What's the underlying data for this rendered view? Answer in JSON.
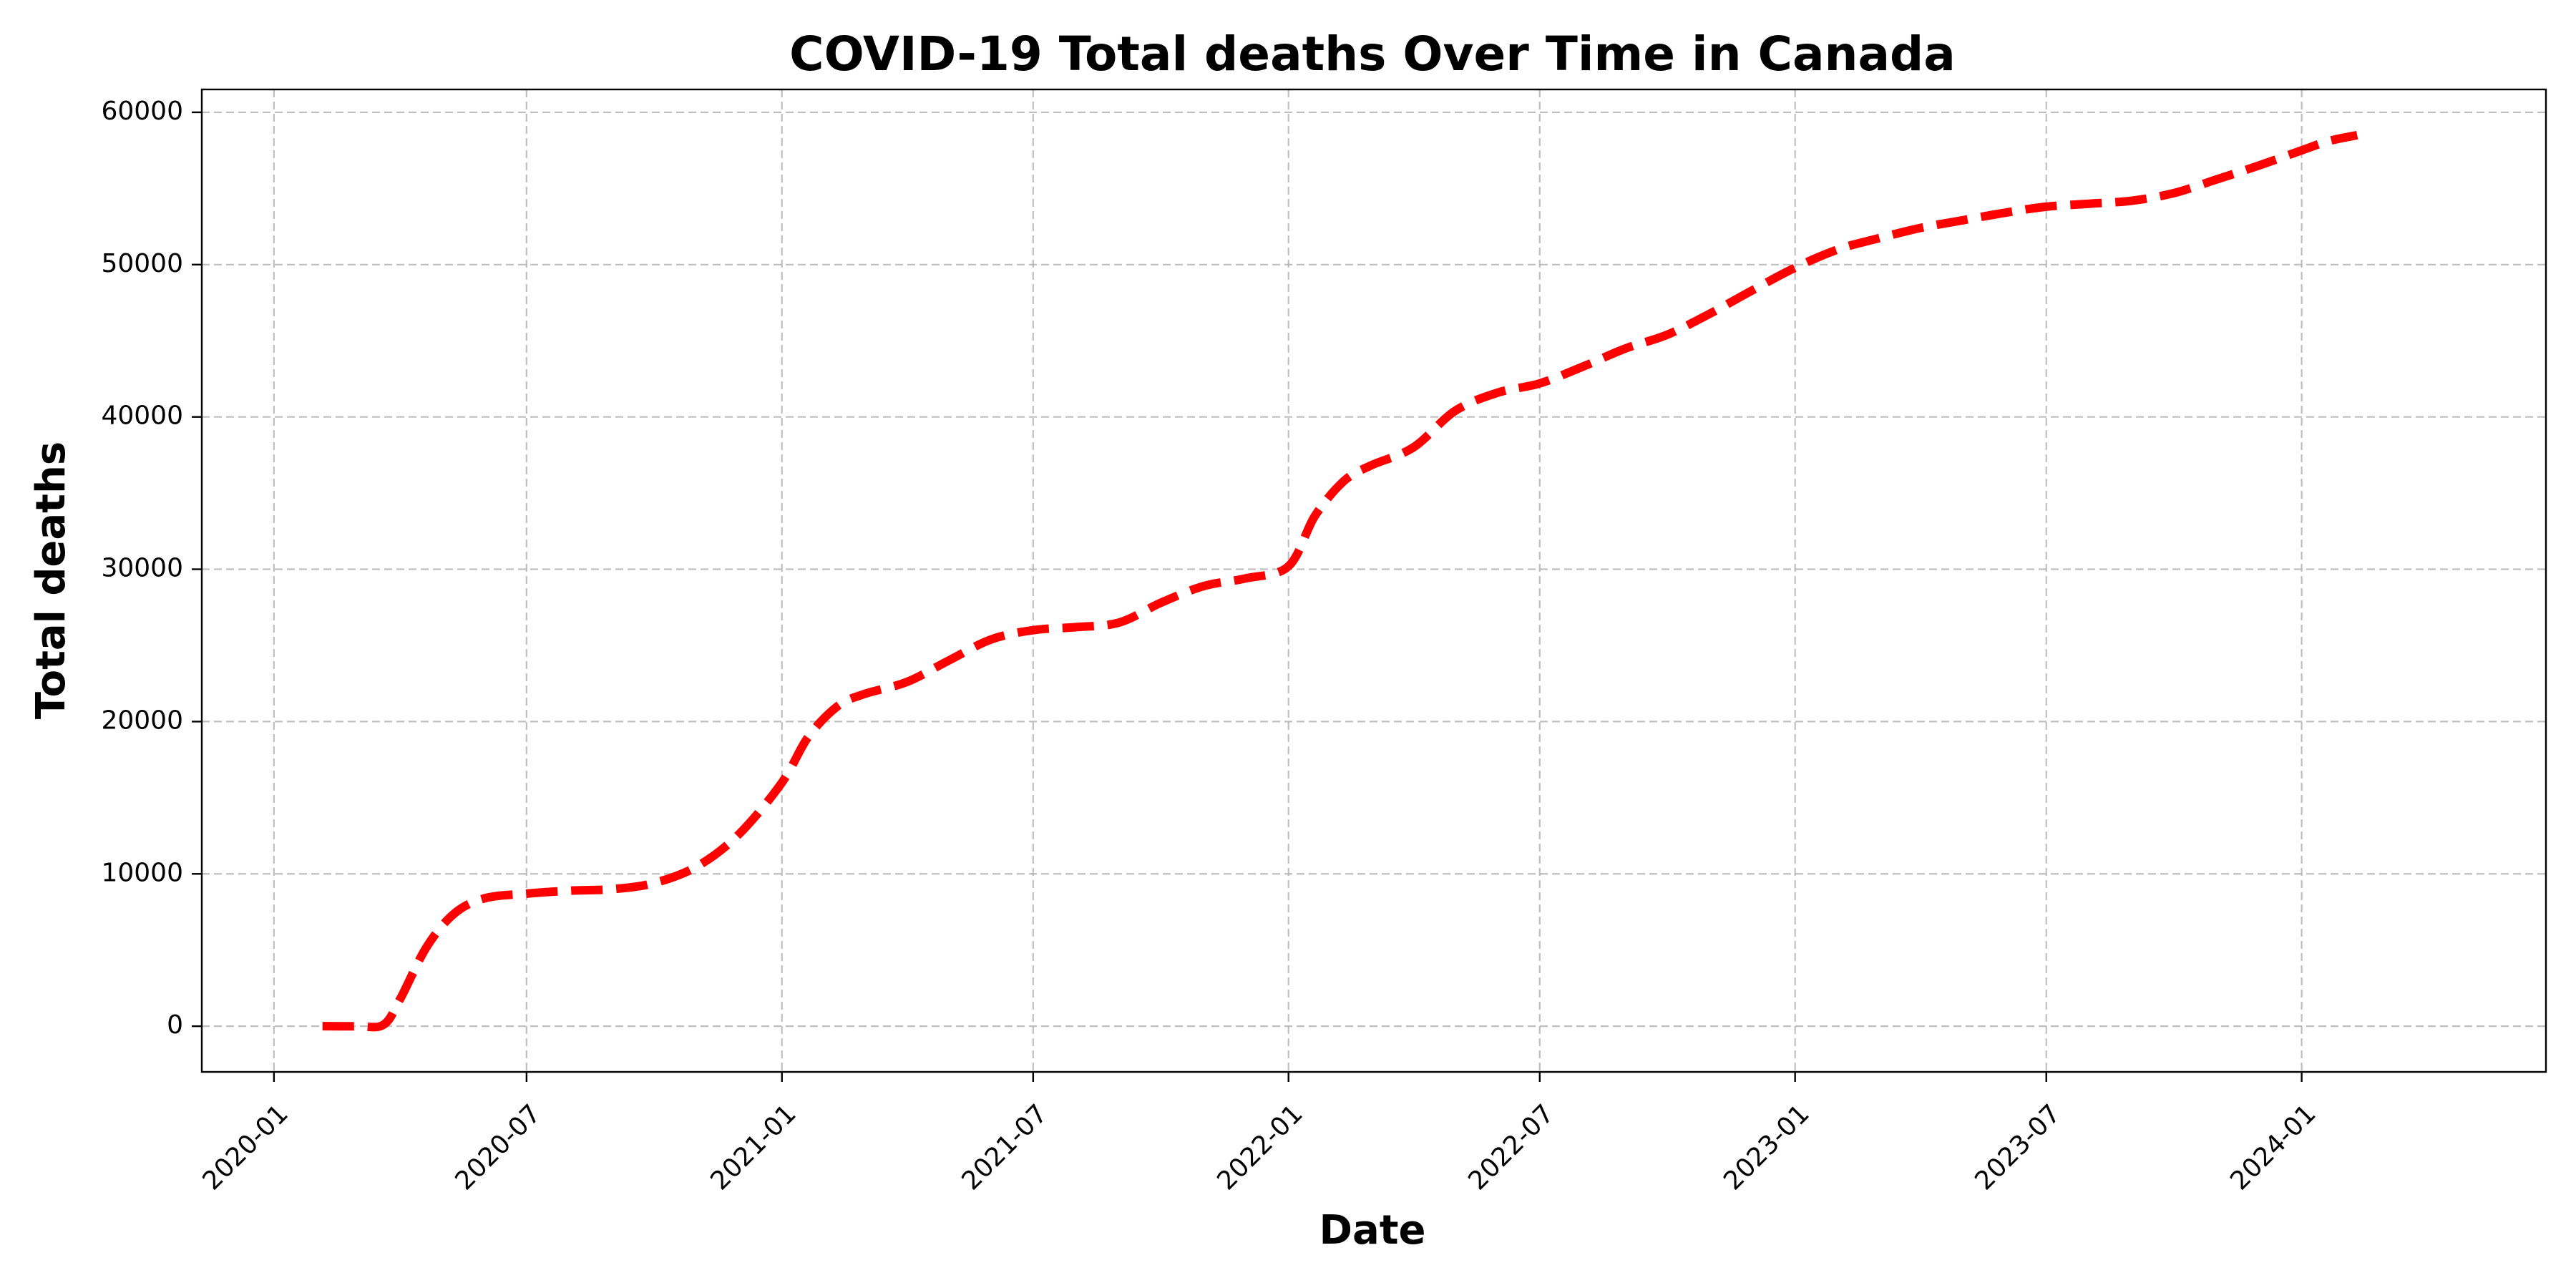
{
  "chart_data": {
    "type": "line",
    "title": "COVID-19 Total deaths Over Time in Canada",
    "xlabel": "Date",
    "ylabel": "Total deaths",
    "x_tick_labels": [
      "2020-01",
      "2020-07",
      "2021-01",
      "2021-07",
      "2022-01",
      "2022-07",
      "2023-01",
      "2023-07",
      "2024-01"
    ],
    "y_tick_labels": [
      "0",
      "10000",
      "20000",
      "30000",
      "40000",
      "50000",
      "60000"
    ],
    "xlim": [
      "2019-11-10",
      "2024-06-25"
    ],
    "ylim": [
      -3000,
      61500
    ],
    "grid": true,
    "series": [
      {
        "color": "#ff0000",
        "line_style": "dashed",
        "x": [
          "2020-02-05",
          "2020-03-01",
          "2020-03-20",
          "2020-04-01",
          "2020-04-20",
          "2020-05-10",
          "2020-06-01",
          "2020-07-01",
          "2020-08-01",
          "2020-09-01",
          "2020-10-01",
          "2020-11-01",
          "2020-12-01",
          "2021-01-01",
          "2021-01-20",
          "2021-02-10",
          "2021-03-01",
          "2021-04-01",
          "2021-05-01",
          "2021-06-01",
          "2021-07-01",
          "2021-08-01",
          "2021-09-01",
          "2021-10-01",
          "2021-11-01",
          "2021-12-01",
          "2022-01-01",
          "2022-01-20",
          "2022-02-10",
          "2022-03-01",
          "2022-04-01",
          "2022-05-01",
          "2022-06-01",
          "2022-07-01",
          "2022-08-01",
          "2022-09-01",
          "2022-10-01",
          "2022-11-01",
          "2022-12-01",
          "2023-01-01",
          "2023-02-01",
          "2023-03-01",
          "2023-04-01",
          "2023-05-01",
          "2023-06-01",
          "2023-07-01",
          "2023-08-01",
          "2023-09-01",
          "2023-10-01",
          "2023-11-01",
          "2023-12-01",
          "2024-01-01",
          "2024-01-20",
          "2024-02-10"
        ],
        "y": [
          0,
          0,
          100,
          1800,
          5200,
          7400,
          8400,
          8700,
          8900,
          9000,
          9400,
          10500,
          12600,
          16000,
          19000,
          21000,
          21800,
          22600,
          24000,
          25400,
          26000,
          26200,
          26500,
          27800,
          28900,
          29400,
          30200,
          33500,
          35800,
          36800,
          38000,
          40400,
          41600,
          42200,
          43300,
          44500,
          45400,
          46800,
          48300,
          49800,
          51000,
          51700,
          52400,
          52900,
          53400,
          53800,
          54000,
          54200,
          54700,
          55600,
          56500,
          57500,
          58100,
          58500
        ]
      }
    ]
  }
}
